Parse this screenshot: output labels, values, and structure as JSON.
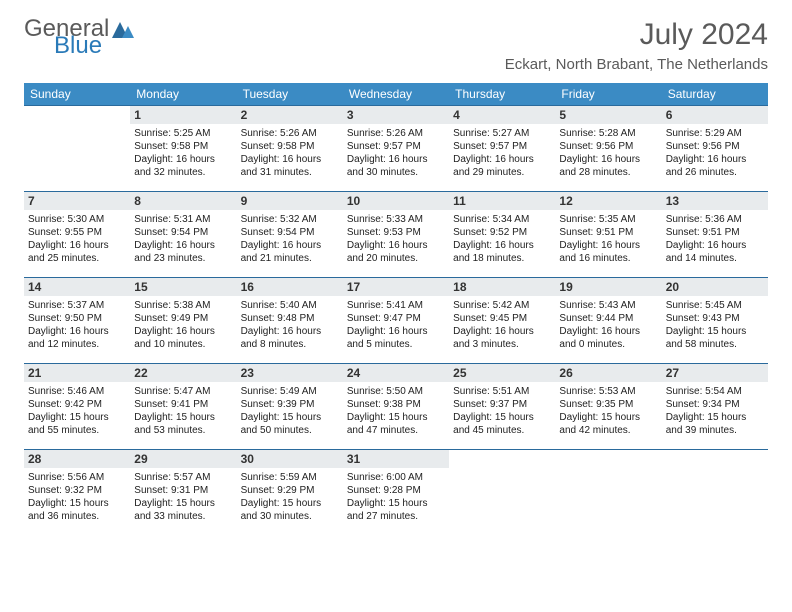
{
  "logo": {
    "general": "General",
    "blue": "Blue"
  },
  "title": "July 2024",
  "location": "Eckart, North Brabant, The Netherlands",
  "colors": {
    "header_bg": "#3b8bc4",
    "header_text": "#ffffff",
    "border": "#2a6a9c",
    "daynum_bg": "#e8ebed",
    "text": "#222222",
    "title_text": "#5a5a5a",
    "logo_blue": "#2a7ab8"
  },
  "layout": {
    "cols": 7,
    "rows": 5,
    "month_start_col": 1,
    "days_in_month": 31
  },
  "day_headers": [
    "Sunday",
    "Monday",
    "Tuesday",
    "Wednesday",
    "Thursday",
    "Friday",
    "Saturday"
  ],
  "days": [
    {
      "n": 1,
      "sunrise": "5:25 AM",
      "sunset": "9:58 PM",
      "daylight": "16 hours and 32 minutes."
    },
    {
      "n": 2,
      "sunrise": "5:26 AM",
      "sunset": "9:58 PM",
      "daylight": "16 hours and 31 minutes."
    },
    {
      "n": 3,
      "sunrise": "5:26 AM",
      "sunset": "9:57 PM",
      "daylight": "16 hours and 30 minutes."
    },
    {
      "n": 4,
      "sunrise": "5:27 AM",
      "sunset": "9:57 PM",
      "daylight": "16 hours and 29 minutes."
    },
    {
      "n": 5,
      "sunrise": "5:28 AM",
      "sunset": "9:56 PM",
      "daylight": "16 hours and 28 minutes."
    },
    {
      "n": 6,
      "sunrise": "5:29 AM",
      "sunset": "9:56 PM",
      "daylight": "16 hours and 26 minutes."
    },
    {
      "n": 7,
      "sunrise": "5:30 AM",
      "sunset": "9:55 PM",
      "daylight": "16 hours and 25 minutes."
    },
    {
      "n": 8,
      "sunrise": "5:31 AM",
      "sunset": "9:54 PM",
      "daylight": "16 hours and 23 minutes."
    },
    {
      "n": 9,
      "sunrise": "5:32 AM",
      "sunset": "9:54 PM",
      "daylight": "16 hours and 21 minutes."
    },
    {
      "n": 10,
      "sunrise": "5:33 AM",
      "sunset": "9:53 PM",
      "daylight": "16 hours and 20 minutes."
    },
    {
      "n": 11,
      "sunrise": "5:34 AM",
      "sunset": "9:52 PM",
      "daylight": "16 hours and 18 minutes."
    },
    {
      "n": 12,
      "sunrise": "5:35 AM",
      "sunset": "9:51 PM",
      "daylight": "16 hours and 16 minutes."
    },
    {
      "n": 13,
      "sunrise": "5:36 AM",
      "sunset": "9:51 PM",
      "daylight": "16 hours and 14 minutes."
    },
    {
      "n": 14,
      "sunrise": "5:37 AM",
      "sunset": "9:50 PM",
      "daylight": "16 hours and 12 minutes."
    },
    {
      "n": 15,
      "sunrise": "5:38 AM",
      "sunset": "9:49 PM",
      "daylight": "16 hours and 10 minutes."
    },
    {
      "n": 16,
      "sunrise": "5:40 AM",
      "sunset": "9:48 PM",
      "daylight": "16 hours and 8 minutes."
    },
    {
      "n": 17,
      "sunrise": "5:41 AM",
      "sunset": "9:47 PM",
      "daylight": "16 hours and 5 minutes."
    },
    {
      "n": 18,
      "sunrise": "5:42 AM",
      "sunset": "9:45 PM",
      "daylight": "16 hours and 3 minutes."
    },
    {
      "n": 19,
      "sunrise": "5:43 AM",
      "sunset": "9:44 PM",
      "daylight": "16 hours and 0 minutes."
    },
    {
      "n": 20,
      "sunrise": "5:45 AM",
      "sunset": "9:43 PM",
      "daylight": "15 hours and 58 minutes."
    },
    {
      "n": 21,
      "sunrise": "5:46 AM",
      "sunset": "9:42 PM",
      "daylight": "15 hours and 55 minutes."
    },
    {
      "n": 22,
      "sunrise": "5:47 AM",
      "sunset": "9:41 PM",
      "daylight": "15 hours and 53 minutes."
    },
    {
      "n": 23,
      "sunrise": "5:49 AM",
      "sunset": "9:39 PM",
      "daylight": "15 hours and 50 minutes."
    },
    {
      "n": 24,
      "sunrise": "5:50 AM",
      "sunset": "9:38 PM",
      "daylight": "15 hours and 47 minutes."
    },
    {
      "n": 25,
      "sunrise": "5:51 AM",
      "sunset": "9:37 PM",
      "daylight": "15 hours and 45 minutes."
    },
    {
      "n": 26,
      "sunrise": "5:53 AM",
      "sunset": "9:35 PM",
      "daylight": "15 hours and 42 minutes."
    },
    {
      "n": 27,
      "sunrise": "5:54 AM",
      "sunset": "9:34 PM",
      "daylight": "15 hours and 39 minutes."
    },
    {
      "n": 28,
      "sunrise": "5:56 AM",
      "sunset": "9:32 PM",
      "daylight": "15 hours and 36 minutes."
    },
    {
      "n": 29,
      "sunrise": "5:57 AM",
      "sunset": "9:31 PM",
      "daylight": "15 hours and 33 minutes."
    },
    {
      "n": 30,
      "sunrise": "5:59 AM",
      "sunset": "9:29 PM",
      "daylight": "15 hours and 30 minutes."
    },
    {
      "n": 31,
      "sunrise": "6:00 AM",
      "sunset": "9:28 PM",
      "daylight": "15 hours and 27 minutes."
    }
  ],
  "labels": {
    "sunrise": "Sunrise:",
    "sunset": "Sunset:",
    "daylight": "Daylight:"
  }
}
